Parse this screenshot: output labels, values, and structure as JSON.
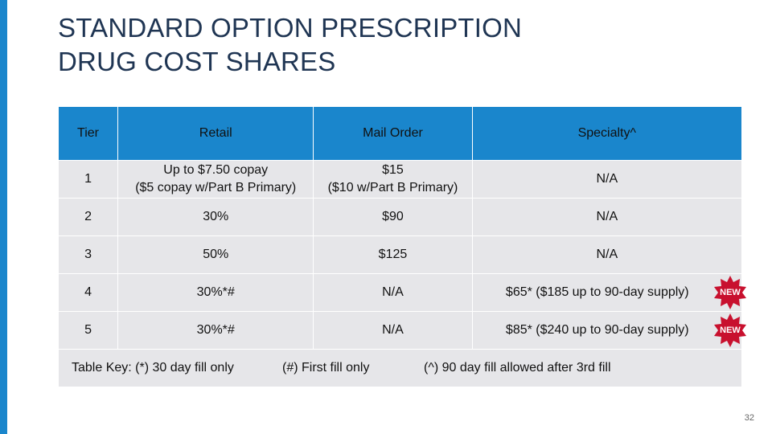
{
  "slide": {
    "title_lines": [
      "STANDARD OPTION PRESCRIPTION",
      "DRUG COST SHARES"
    ],
    "page_number": "32"
  },
  "colors": {
    "accent": "#1a86cc",
    "title": "#1f3553",
    "cell_bg": "#e6e6e9",
    "badge": "#c8102e"
  },
  "table": {
    "headers": [
      "Tier",
      "Retail",
      "Mail Order",
      "Specialty^"
    ],
    "rows": [
      {
        "tier": "1",
        "retail": [
          "Up to $7.50 copay",
          "($5 copay w/Part B Primary)"
        ],
        "mail": [
          "$15",
          "($10 w/Part B Primary)"
        ],
        "specialty": "N/A",
        "badge": ""
      },
      {
        "tier": "2",
        "retail": [
          "30%"
        ],
        "mail": [
          "$90"
        ],
        "specialty": "N/A",
        "badge": ""
      },
      {
        "tier": "3",
        "retail": [
          "50%"
        ],
        "mail": [
          "$125"
        ],
        "specialty": "N/A",
        "badge": ""
      },
      {
        "tier": "4",
        "retail": [
          "30%*#"
        ],
        "mail": [
          "N/A"
        ],
        "specialty": "$65* ($185 up to 90-day supply)",
        "badge": "NEW"
      },
      {
        "tier": "5",
        "retail": [
          "30%*#"
        ],
        "mail": [
          "N/A"
        ],
        "specialty": "$85* ($240 up to 90-day supply)",
        "badge": "NEW"
      }
    ],
    "key": [
      "Table Key: (*) 30 day fill only",
      "(#) First fill only",
      "(^) 90 day fill allowed after 3rd fill"
    ]
  }
}
